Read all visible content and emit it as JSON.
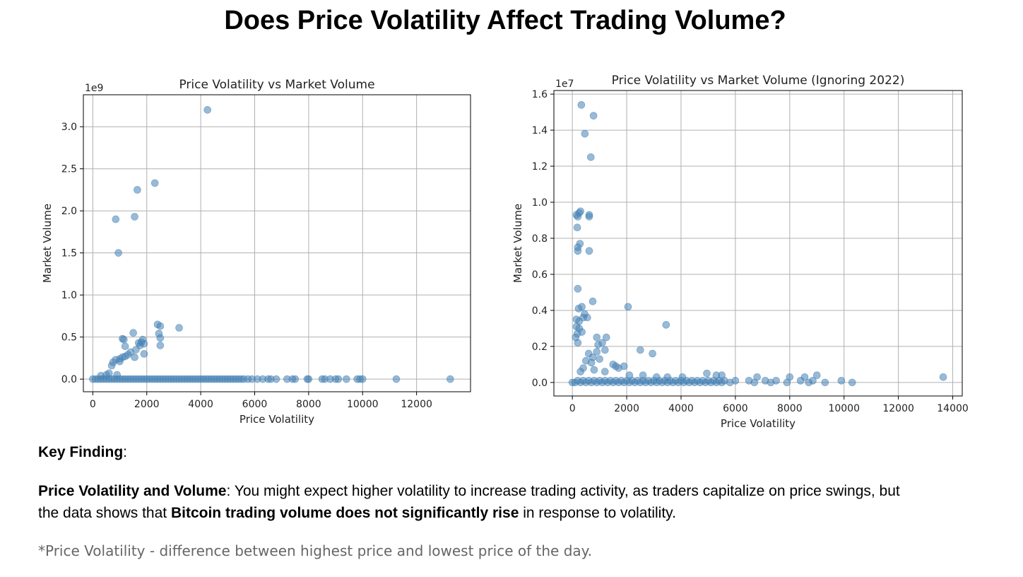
{
  "page": {
    "title": "Does Price Volatility Affect Trading Volume?",
    "key_finding_label": "Key Finding",
    "key_finding_colon": ":",
    "finding_bold": "Price Volatility and Volume",
    "finding_text_1": ": You might expect higher volatility to increase trading activity, as traders capitalize on price swings, but the data shows that ",
    "finding_bold_2": "Bitcoin trading volume does not significantly rise",
    "finding_text_2": " in response to volatility.",
    "footnote": "*Price Volatility - difference between highest price and lowest price of the day."
  },
  "colors": {
    "point": "#4682b4",
    "grid": "#b0b0b0"
  },
  "chart_data": [
    {
      "type": "scatter",
      "title": "Price Volatility vs Market Volume",
      "xlabel": "Price Volatility",
      "ylabel": "Market Volume",
      "y_exponent_label": "1e9",
      "xlim": [
        -350,
        14000
      ],
      "ylim": [
        -0.15,
        3.38
      ],
      "xticks": [
        0,
        2000,
        4000,
        6000,
        8000,
        10000,
        12000
      ],
      "xtick_labels": [
        "0",
        "2000",
        "4000",
        "6000",
        "8000",
        "10000",
        "12000"
      ],
      "yticks": [
        0.0,
        0.5,
        1.0,
        1.5,
        2.0,
        2.5,
        3.0
      ],
      "ytick_labels": [
        "0.0",
        "0.5",
        "1.0",
        "1.5",
        "2.0",
        "2.5",
        "3.0"
      ],
      "grid": true,
      "points": [
        [
          4250,
          3.2
        ],
        [
          1650,
          2.25
        ],
        [
          2300,
          2.33
        ],
        [
          850,
          1.9
        ],
        [
          1550,
          1.93
        ],
        [
          950,
          1.5
        ],
        [
          2400,
          0.65
        ],
        [
          2500,
          0.63
        ],
        [
          3200,
          0.61
        ],
        [
          1500,
          0.55
        ],
        [
          2450,
          0.54
        ],
        [
          2500,
          0.49
        ],
        [
          1100,
          0.48
        ],
        [
          1150,
          0.47
        ],
        [
          1850,
          0.47
        ],
        [
          1700,
          0.43
        ],
        [
          1800,
          0.44
        ],
        [
          1900,
          0.42
        ],
        [
          1750,
          0.4
        ],
        [
          2500,
          0.4
        ],
        [
          1200,
          0.39
        ],
        [
          1600,
          0.35
        ],
        [
          1400,
          0.32
        ],
        [
          1900,
          0.3
        ],
        [
          1300,
          0.29
        ],
        [
          1200,
          0.27
        ],
        [
          1100,
          0.26
        ],
        [
          1550,
          0.26
        ],
        [
          1000,
          0.24
        ],
        [
          850,
          0.23
        ],
        [
          1000,
          0.21
        ],
        [
          750,
          0.2
        ],
        [
          700,
          0.16
        ],
        [
          600,
          0.07
        ],
        [
          500,
          0.05
        ],
        [
          300,
          0.04
        ],
        [
          900,
          0.05
        ],
        [
          0,
          0
        ],
        [
          100,
          0
        ],
        [
          200,
          0
        ],
        [
          300,
          0
        ],
        [
          400,
          0
        ],
        [
          500,
          0
        ],
        [
          600,
          0
        ],
        [
          700,
          0
        ],
        [
          800,
          0
        ],
        [
          900,
          0
        ],
        [
          1000,
          0
        ],
        [
          1100,
          0
        ],
        [
          1200,
          0
        ],
        [
          1300,
          0
        ],
        [
          1400,
          0
        ],
        [
          1500,
          0
        ],
        [
          1600,
          0
        ],
        [
          1700,
          0
        ],
        [
          1800,
          0
        ],
        [
          1900,
          0
        ],
        [
          2000,
          0
        ],
        [
          2100,
          0
        ],
        [
          2200,
          0
        ],
        [
          2300,
          0
        ],
        [
          2400,
          0
        ],
        [
          2500,
          0
        ],
        [
          2600,
          0
        ],
        [
          2700,
          0
        ],
        [
          2800,
          0
        ],
        [
          2900,
          0
        ],
        [
          3000,
          0
        ],
        [
          3100,
          0
        ],
        [
          3200,
          0
        ],
        [
          3300,
          0
        ],
        [
          3400,
          0
        ],
        [
          3500,
          0
        ],
        [
          3600,
          0
        ],
        [
          3700,
          0
        ],
        [
          3800,
          0
        ],
        [
          3900,
          0
        ],
        [
          4000,
          0
        ],
        [
          4100,
          0
        ],
        [
          4200,
          0
        ],
        [
          4300,
          0
        ],
        [
          4400,
          0
        ],
        [
          4500,
          0
        ],
        [
          4600,
          0
        ],
        [
          4700,
          0
        ],
        [
          4800,
          0
        ],
        [
          4900,
          0
        ],
        [
          5000,
          0
        ],
        [
          5100,
          0
        ],
        [
          5200,
          0
        ],
        [
          5300,
          0
        ],
        [
          5400,
          0
        ],
        [
          5500,
          0
        ],
        [
          5600,
          0
        ],
        [
          5750,
          0
        ],
        [
          5900,
          0
        ],
        [
          6100,
          0
        ],
        [
          6300,
          0
        ],
        [
          6500,
          0
        ],
        [
          6600,
          0
        ],
        [
          6800,
          0
        ],
        [
          7200,
          0
        ],
        [
          7400,
          0
        ],
        [
          7500,
          0
        ],
        [
          7950,
          0
        ],
        [
          8000,
          0
        ],
        [
          8500,
          0
        ],
        [
          8600,
          0
        ],
        [
          8800,
          0
        ],
        [
          9000,
          0
        ],
        [
          9100,
          0
        ],
        [
          9400,
          0
        ],
        [
          9800,
          0
        ],
        [
          9900,
          0
        ],
        [
          10000,
          0
        ],
        [
          11250,
          0
        ],
        [
          13250,
          0
        ]
      ]
    },
    {
      "type": "scatter",
      "title": "Price Volatility vs Market Volume (Ignoring 2022)",
      "xlabel": "Price Volatility",
      "ylabel": "Market Volume",
      "y_exponent_label": "1e7",
      "xlim": [
        -680,
        14350
      ],
      "ylim": [
        -0.075,
        1.62
      ],
      "xticks": [
        0,
        2000,
        4000,
        6000,
        8000,
        10000,
        12000,
        14000
      ],
      "xtick_labels": [
        "0",
        "2000",
        "4000",
        "6000",
        "8000",
        "10000",
        "12000",
        "14000"
      ],
      "yticks": [
        0.0,
        0.2,
        0.4,
        0.6,
        0.8,
        1.0,
        1.2,
        1.4,
        1.6
      ],
      "ytick_labels": [
        "0.0",
        "0.2",
        "0.4",
        "0.6",
        "0.8",
        "1.0",
        "1.2",
        "1.4",
        "1.6"
      ],
      "grid": true,
      "points": [
        [
          330,
          1.54
        ],
        [
          780,
          1.48
        ],
        [
          460,
          1.38
        ],
        [
          680,
          1.25
        ],
        [
          300,
          0.95
        ],
        [
          150,
          0.93
        ],
        [
          250,
          0.94
        ],
        [
          200,
          0.92
        ],
        [
          620,
          0.93
        ],
        [
          620,
          0.92
        ],
        [
          180,
          0.86
        ],
        [
          280,
          0.77
        ],
        [
          200,
          0.75
        ],
        [
          200,
          0.73
        ],
        [
          620,
          0.73
        ],
        [
          200,
          0.52
        ],
        [
          750,
          0.45
        ],
        [
          2050,
          0.42
        ],
        [
          3450,
          0.32
        ],
        [
          230,
          0.41
        ],
        [
          350,
          0.42
        ],
        [
          450,
          0.38
        ],
        [
          550,
          0.36
        ],
        [
          150,
          0.35
        ],
        [
          250,
          0.34
        ],
        [
          400,
          0.36
        ],
        [
          150,
          0.31
        ],
        [
          250,
          0.3
        ],
        [
          350,
          0.28
        ],
        [
          180,
          0.27
        ],
        [
          120,
          0.25
        ],
        [
          200,
          0.22
        ],
        [
          900,
          0.25
        ],
        [
          1250,
          0.25
        ],
        [
          1100,
          0.22
        ],
        [
          950,
          0.21
        ],
        [
          1200,
          0.18
        ],
        [
          2500,
          0.18
        ],
        [
          2950,
          0.16
        ],
        [
          900,
          0.17
        ],
        [
          600,
          0.16
        ],
        [
          750,
          0.14
        ],
        [
          1000,
          0.13
        ],
        [
          500,
          0.12
        ],
        [
          700,
          0.11
        ],
        [
          1500,
          0.1
        ],
        [
          1600,
          0.09
        ],
        [
          1900,
          0.09
        ],
        [
          400,
          0.08
        ],
        [
          800,
          0.07
        ],
        [
          300,
          0.06
        ],
        [
          1200,
          0.06
        ],
        [
          1700,
          0.08
        ],
        [
          2100,
          0.04
        ],
        [
          2600,
          0.04
        ],
        [
          3100,
          0.03
        ],
        [
          3500,
          0.03
        ],
        [
          4050,
          0.03
        ],
        [
          4950,
          0.05
        ],
        [
          5300,
          0.04
        ],
        [
          5500,
          0.04
        ],
        [
          6800,
          0.03
        ],
        [
          8000,
          0.03
        ],
        [
          8550,
          0.03
        ],
        [
          9000,
          0.04
        ],
        [
          13650,
          0.03
        ],
        [
          0,
          0
        ],
        [
          100,
          0
        ],
        [
          200,
          0.01
        ],
        [
          300,
          0
        ],
        [
          400,
          0.01
        ],
        [
          500,
          0
        ],
        [
          600,
          0.01
        ],
        [
          700,
          0
        ],
        [
          800,
          0.01
        ],
        [
          900,
          0
        ],
        [
          1000,
          0.01
        ],
        [
          1100,
          0
        ],
        [
          1200,
          0.01
        ],
        [
          1300,
          0
        ],
        [
          1400,
          0.01
        ],
        [
          1500,
          0
        ],
        [
          1600,
          0.01
        ],
        [
          1700,
          0
        ],
        [
          1800,
          0.01
        ],
        [
          1900,
          0
        ],
        [
          2000,
          0.01
        ],
        [
          2100,
          0
        ],
        [
          2200,
          0.01
        ],
        [
          2300,
          0
        ],
        [
          2400,
          0.01
        ],
        [
          2500,
          0
        ],
        [
          2600,
          0.01
        ],
        [
          2700,
          0
        ],
        [
          2800,
          0.01
        ],
        [
          2900,
          0
        ],
        [
          3000,
          0.01
        ],
        [
          3100,
          0
        ],
        [
          3200,
          0.01
        ],
        [
          3300,
          0
        ],
        [
          3400,
          0.01
        ],
        [
          3500,
          0
        ],
        [
          3600,
          0.01
        ],
        [
          3700,
          0
        ],
        [
          3800,
          0.01
        ],
        [
          3900,
          0
        ],
        [
          4000,
          0.01
        ],
        [
          4100,
          0
        ],
        [
          4200,
          0.01
        ],
        [
          4300,
          0
        ],
        [
          4400,
          0.01
        ],
        [
          4500,
          0
        ],
        [
          4600,
          0.01
        ],
        [
          4700,
          0
        ],
        [
          4800,
          0.01
        ],
        [
          4900,
          0
        ],
        [
          5000,
          0.01
        ],
        [
          5100,
          0
        ],
        [
          5200,
          0.01
        ],
        [
          5300,
          0
        ],
        [
          5400,
          0.01
        ],
        [
          5500,
          0
        ],
        [
          5600,
          0.01
        ],
        [
          5800,
          0
        ],
        [
          6000,
          0.01
        ],
        [
          6500,
          0.01
        ],
        [
          6700,
          0
        ],
        [
          7100,
          0.01
        ],
        [
          7300,
          0
        ],
        [
          7500,
          0.01
        ],
        [
          7900,
          0
        ],
        [
          8400,
          0.01
        ],
        [
          8700,
          0
        ],
        [
          8850,
          0.01
        ],
        [
          9300,
          0
        ],
        [
          9900,
          0.01
        ],
        [
          10300,
          0
        ]
      ]
    }
  ]
}
